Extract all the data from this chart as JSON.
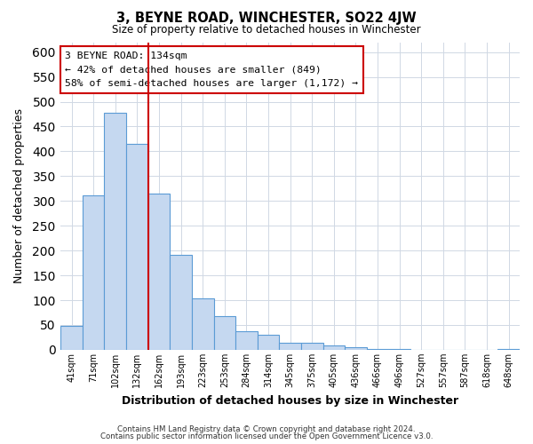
{
  "title": "3, BEYNE ROAD, WINCHESTER, SO22 4JW",
  "subtitle": "Size of property relative to detached houses in Winchester",
  "xlabel": "Distribution of detached houses by size in Winchester",
  "ylabel": "Number of detached properties",
  "bar_color": "#c5d8f0",
  "bar_edge_color": "#5b9bd5",
  "vline_color": "#cc0000",
  "categories": [
    "41sqm",
    "71sqm",
    "102sqm",
    "132sqm",
    "162sqm",
    "193sqm",
    "223sqm",
    "253sqm",
    "284sqm",
    "314sqm",
    "345sqm",
    "375sqm",
    "405sqm",
    "436sqm",
    "466sqm",
    "496sqm",
    "527sqm",
    "557sqm",
    "587sqm",
    "618sqm",
    "648sqm"
  ],
  "values": [
    48,
    311,
    478,
    415,
    314,
    192,
    104,
    68,
    38,
    31,
    14,
    15,
    9,
    5,
    2,
    2,
    0,
    0,
    0,
    0,
    2
  ],
  "ylim": [
    0,
    620
  ],
  "yticks": [
    0,
    50,
    100,
    150,
    200,
    250,
    300,
    350,
    400,
    450,
    500,
    550,
    600
  ],
  "vline_bar_index": 3,
  "annotation_title": "3 BEYNE ROAD: 134sqm",
  "annotation_line1": "← 42% of detached houses are smaller (849)",
  "annotation_line2": "58% of semi-detached houses are larger (1,172) →",
  "annotation_box_color": "#ffffff",
  "annotation_box_edge": "#cc0000",
  "footer1": "Contains HM Land Registry data © Crown copyright and database right 2024.",
  "footer2": "Contains public sector information licensed under the Open Government Licence v3.0.",
  "background_color": "#ffffff",
  "grid_color": "#d0d8e4"
}
